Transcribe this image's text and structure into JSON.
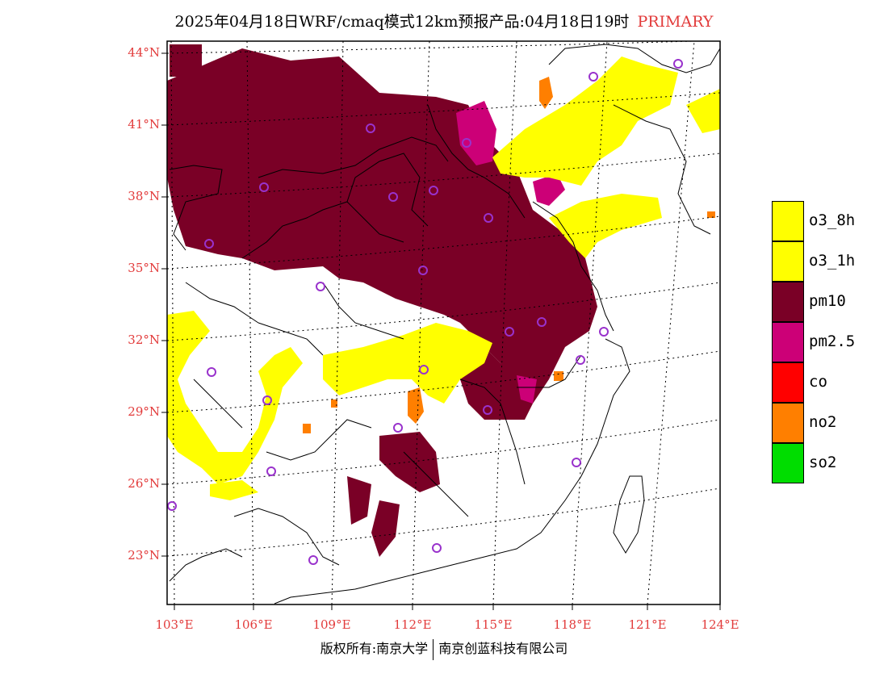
{
  "title": {
    "main": "2025年04月18日WRF/cmaq模式12km预报产品:04月18日19时",
    "tag": "PRIMARY"
  },
  "map": {
    "lat_labels": [
      "44°N",
      "41°N",
      "38°N",
      "35°N",
      "32°N",
      "29°N",
      "26°N",
      "23°N"
    ],
    "lon_labels": [
      "103°E",
      "106°E",
      "109°E",
      "112°E",
      "115°E",
      "118°E",
      "121°E",
      "124°E"
    ]
  },
  "legend": [
    {
      "label": "o3_8h",
      "color": "#ffff00"
    },
    {
      "label": "o3_1h",
      "color": "#ffff00"
    },
    {
      "label": "pm10",
      "color": "#7a0026"
    },
    {
      "label": "pm2.5",
      "color": "#cc0077"
    },
    {
      "label": "co",
      "color": "#ff0000"
    },
    {
      "label": "no2",
      "color": "#ff7f00"
    },
    {
      "label": "so2",
      "color": "#00dd00"
    }
  ],
  "footer": {
    "left": "版权所有:南京大学",
    "right": "南京创蓝科技有限公司"
  }
}
